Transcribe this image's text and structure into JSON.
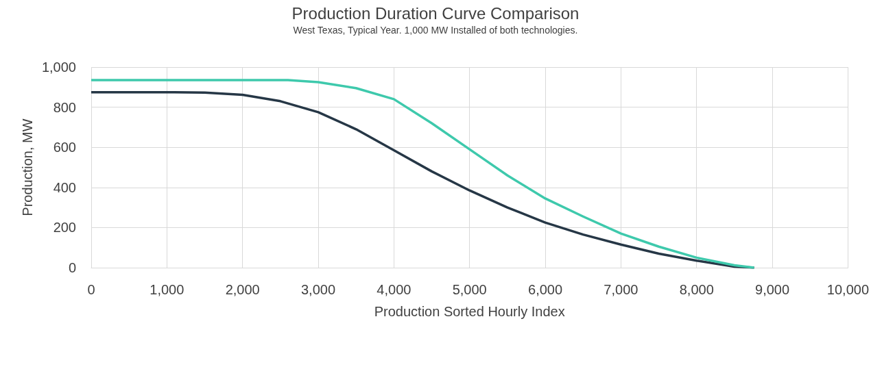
{
  "chart_data": {
    "type": "line",
    "title": "Production Duration Curve Comparison",
    "subtitle": "West Texas, Typical Year. 1,000 MW Installed of both technologies.",
    "xlabel": "Production Sorted Hourly Index",
    "ylabel": "Production, MW",
    "xlim": [
      0,
      10000
    ],
    "xticks": [
      {
        "value": 0,
        "label": "0"
      },
      {
        "value": 1000,
        "label": "1,000"
      },
      {
        "value": 2000,
        "label": "2,000"
      },
      {
        "value": 3000,
        "label": "3,000"
      },
      {
        "value": 4000,
        "label": "4,000"
      },
      {
        "value": 5000,
        "label": "5,000"
      },
      {
        "value": 6000,
        "label": "6,000"
      },
      {
        "value": 7000,
        "label": "7,000"
      },
      {
        "value": 8000,
        "label": "8,000"
      },
      {
        "value": 9000,
        "label": "9,000"
      },
      {
        "value": 10000,
        "label": "10,000"
      }
    ],
    "ylim": [
      0,
      1000
    ],
    "yticks": [
      0,
      200,
      400,
      600,
      800,
      {
        "value": 1000,
        "label": "1,000"
      }
    ],
    "grid": true,
    "marker": "none",
    "line_style": "solid",
    "series": [
      {
        "color": "#263746",
        "x": [
          0,
          1000,
          1500,
          2000,
          2500,
          3000,
          3500,
          4000,
          4500,
          5000,
          5500,
          6000,
          6500,
          7000,
          7500,
          8000,
          8500,
          8760
        ],
        "values": [
          875,
          875,
          873,
          862,
          830,
          775,
          690,
          585,
          480,
          385,
          300,
          225,
          165,
          115,
          70,
          35,
          5,
          0
        ]
      },
      {
        "color": "#3ec9ac",
        "x": [
          0,
          1000,
          2000,
          2600,
          3000,
          3500,
          4000,
          4500,
          5000,
          5500,
          6000,
          6500,
          7000,
          7500,
          8000,
          8500,
          8760
        ],
        "values": [
          935,
          935,
          935,
          935,
          925,
          895,
          840,
          720,
          590,
          460,
          345,
          255,
          170,
          105,
          50,
          12,
          0
        ]
      }
    ]
  }
}
